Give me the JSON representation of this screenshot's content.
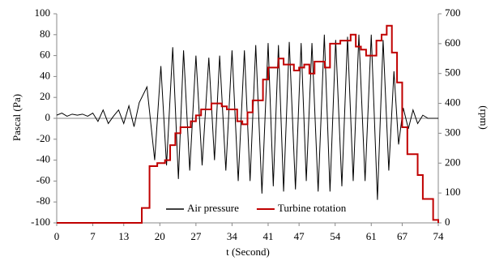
{
  "chart_data": {
    "type": "line",
    "xlabel": "t (Second)",
    "ylabel": "Pascal (Pa)",
    "y2label": "(rpm)",
    "xlim": [
      0,
      74
    ],
    "xticks": [
      0,
      7,
      13,
      20,
      27,
      34,
      41,
      47,
      54,
      61,
      67,
      74
    ],
    "ylim": [
      -100,
      100
    ],
    "yticks": [
      -100,
      -80,
      -60,
      -40,
      -20,
      0,
      20,
      40,
      60,
      80,
      100
    ],
    "y2lim": [
      0,
      700
    ],
    "y2ticks": [
      0,
      100,
      200,
      300,
      400,
      500,
      600,
      700
    ],
    "y2color": "#c00000",
    "legend": "bottom",
    "series": [
      {
        "name": "Air pressure",
        "color": "#000000",
        "x": [
          0,
          1,
          2,
          3,
          4,
          5,
          6,
          7,
          8,
          9,
          10,
          11,
          12,
          13,
          14,
          15,
          16,
          17.5,
          19,
          20.2,
          21.3,
          22.5,
          23.6,
          24.6,
          25.8,
          27,
          28.2,
          29.5,
          30.6,
          31.6,
          32.8,
          34,
          35.2,
          36.4,
          37.5,
          38.6,
          39.8,
          41,
          42,
          43,
          44,
          45.1,
          46.3,
          47.4,
          48.4,
          49.5,
          50.7,
          51.9,
          53,
          54.1,
          55.3,
          56.4,
          57.5,
          58.6,
          59.8,
          61,
          62.2,
          63.3,
          64.4,
          65.4,
          66.3,
          67.2,
          68.2,
          69.1,
          70,
          71,
          72,
          73,
          74
        ],
        "values": [
          3,
          5,
          2,
          4,
          3,
          4,
          2,
          5,
          -3,
          8,
          -5,
          2,
          8,
          -5,
          12,
          -8,
          15,
          30,
          -40,
          50,
          -45,
          68,
          -58,
          65,
          -50,
          60,
          -45,
          58,
          -40,
          60,
          -50,
          65,
          -60,
          65,
          -60,
          70,
          -72,
          72,
          -65,
          70,
          -70,
          73,
          -68,
          72,
          -60,
          72,
          -70,
          80,
          -70,
          75,
          -65,
          78,
          -60,
          80,
          -60,
          80,
          -78,
          75,
          -50,
          45,
          -25,
          10,
          -10,
          8,
          -5,
          3,
          0,
          0,
          0
        ]
      },
      {
        "name": "Turbine rotation",
        "color": "#c00000",
        "axis": "y2",
        "drawstyle": "steps-post",
        "x": [
          0,
          16.5,
          18,
          19.5,
          21,
          22,
          23,
          24,
          26,
          27,
          28,
          30,
          32,
          33,
          35,
          36,
          37,
          38,
          40,
          41,
          43,
          44,
          46,
          47,
          48,
          49,
          50,
          52,
          53,
          55,
          57,
          58,
          59,
          60,
          62,
          63,
          64,
          65,
          66,
          67,
          68,
          70,
          71,
          73,
          74
        ],
        "values": [
          0,
          50,
          190,
          200,
          210,
          260,
          300,
          320,
          340,
          360,
          380,
          400,
          390,
          380,
          340,
          330,
          370,
          410,
          480,
          520,
          550,
          530,
          510,
          520,
          530,
          500,
          540,
          520,
          600,
          610,
          630,
          590,
          580,
          560,
          610,
          630,
          660,
          570,
          470,
          320,
          230,
          160,
          80,
          10,
          0
        ]
      }
    ]
  }
}
